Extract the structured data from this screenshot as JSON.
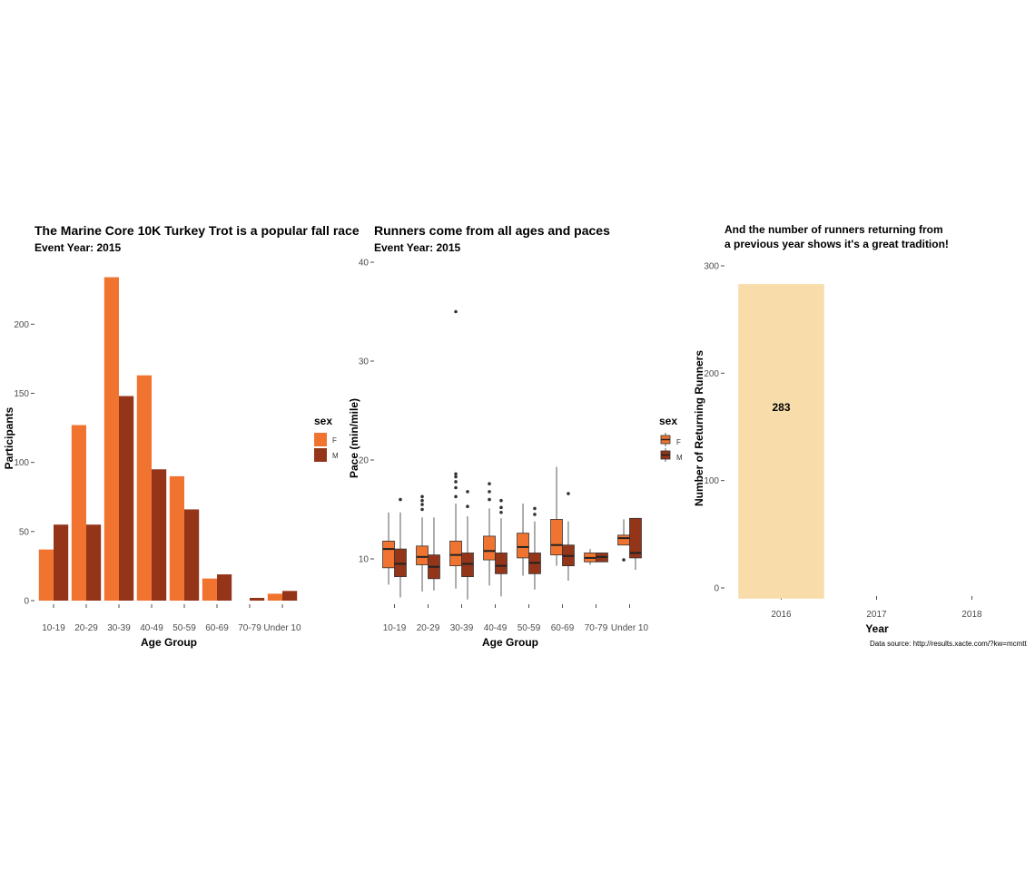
{
  "colors": {
    "F": "#f07430",
    "M": "#943519",
    "returning": "#f8dcaa",
    "tick": "#4d4d4d",
    "whisker": "#333333"
  },
  "chart_data": [
    {
      "type": "bar",
      "title": "The Marine Core 10K Turkey Trot is a popular fall race",
      "subtitle": "Event Year: 2015",
      "xlabel": "Age Group",
      "ylabel": "Participants",
      "ylim": [
        0,
        235
      ],
      "yticks": [
        0,
        50,
        100,
        150,
        200
      ],
      "categories": [
        "10-19",
        "20-29",
        "30-39",
        "40-49",
        "50-59",
        "60-69",
        "70-79",
        "Under 10"
      ],
      "legend": {
        "title": "sex",
        "position": "right"
      },
      "series": [
        {
          "name": "F",
          "values": [
            37,
            127,
            234,
            163,
            90,
            16,
            0,
            5
          ]
        },
        {
          "name": "M",
          "values": [
            55,
            55,
            148,
            95,
            66,
            19,
            2,
            7
          ]
        }
      ]
    },
    {
      "type": "box",
      "title": "Runners come from all ages and paces",
      "subtitle": "Event Year: 2015",
      "xlabel": "Age Group",
      "ylabel": "Pace (min/mile)",
      "ylim": [
        5,
        40
      ],
      "yticks": [
        10,
        20,
        30,
        40
      ],
      "categories": [
        "10-19",
        "20-29",
        "30-39",
        "40-49",
        "50-59",
        "60-69",
        "70-79",
        "Under 10"
      ],
      "legend": {
        "title": "sex",
        "position": "right"
      },
      "series": [
        {
          "name": "F",
          "boxes": [
            {
              "cat": "10-19",
              "min": 7.4,
              "q1": 9.1,
              "median": 11.0,
              "q3": 11.8,
              "max": 14.7,
              "outliers": []
            },
            {
              "cat": "20-29",
              "min": 6.7,
              "q1": 9.4,
              "median": 10.2,
              "q3": 11.3,
              "max": 14.2,
              "outliers": [
                15.0,
                15.5,
                15.9,
                16.3
              ]
            },
            {
              "cat": "30-39",
              "min": 7.0,
              "q1": 9.3,
              "median": 10.4,
              "q3": 11.8,
              "max": 15.6,
              "outliers": [
                16.3,
                17.2,
                17.8,
                18.3,
                18.6,
                35.0
              ]
            },
            {
              "cat": "40-49",
              "min": 7.3,
              "q1": 9.9,
              "median": 10.8,
              "q3": 12.3,
              "max": 15.1,
              "outliers": [
                16.0,
                16.8,
                17.6
              ]
            },
            {
              "cat": "50-59",
              "min": 8.3,
              "q1": 10.1,
              "median": 11.2,
              "q3": 12.6,
              "max": 15.6,
              "outliers": []
            },
            {
              "cat": "60-69",
              "min": 9.3,
              "q1": 10.4,
              "median": 11.4,
              "q3": 14.0,
              "max": 19.3,
              "outliers": []
            },
            {
              "cat": "70-79",
              "min": 9.4,
              "q1": 9.7,
              "median": 10.1,
              "q3": 10.6,
              "max": 11.0,
              "outliers": []
            },
            {
              "cat": "Under 10",
              "min": 11.4,
              "q1": 11.4,
              "median": 12.1,
              "q3": 12.4,
              "max": 14.0,
              "outliers": [
                9.9
              ]
            }
          ]
        },
        {
          "name": "M",
          "boxes": [
            {
              "cat": "10-19",
              "min": 6.1,
              "q1": 8.2,
              "median": 9.5,
              "q3": 11.0,
              "max": 14.7,
              "outliers": [
                16.0
              ]
            },
            {
              "cat": "20-29",
              "min": 6.8,
              "q1": 8.0,
              "median": 9.2,
              "q3": 10.4,
              "max": 14.2,
              "outliers": []
            },
            {
              "cat": "30-39",
              "min": 5.9,
              "q1": 8.2,
              "median": 9.5,
              "q3": 10.6,
              "max": 14.3,
              "outliers": [
                15.3,
                16.8
              ]
            },
            {
              "cat": "40-49",
              "min": 6.2,
              "q1": 8.5,
              "median": 9.3,
              "q3": 10.6,
              "max": 14.1,
              "outliers": [
                14.7,
                15.2,
                15.9
              ]
            },
            {
              "cat": "50-59",
              "min": 6.9,
              "q1": 8.5,
              "median": 9.6,
              "q3": 10.6,
              "max": 13.8,
              "outliers": [
                14.5,
                15.1
              ]
            },
            {
              "cat": "60-69",
              "min": 7.8,
              "q1": 9.3,
              "median": 10.3,
              "q3": 11.4,
              "max": 13.8,
              "outliers": [
                16.6
              ]
            },
            {
              "cat": "70-79",
              "min": 9.7,
              "q1": 9.7,
              "median": 10.2,
              "q3": 10.6,
              "max": 10.6,
              "outliers": []
            },
            {
              "cat": "Under 10",
              "min": 8.9,
              "q1": 10.1,
              "median": 10.6,
              "q3": 14.1,
              "max": 14.1,
              "outliers": []
            }
          ]
        }
      ]
    },
    {
      "type": "bar",
      "title": "And the number of runners returning from",
      "subtitle": "a previous year shows it's a great tradition!",
      "xlabel": "Year",
      "ylabel": "Number of Returning Runners",
      "ylim": [
        -10,
        300
      ],
      "yticks": [
        0,
        100,
        200,
        300
      ],
      "categories": [
        "2016",
        "2017",
        "2018"
      ],
      "values": [
        283,
        null,
        null
      ],
      "data_labels": [
        "283",
        "",
        ""
      ],
      "caption": "Data source: http://results.xacte.com/?kw=mcmtt"
    }
  ]
}
